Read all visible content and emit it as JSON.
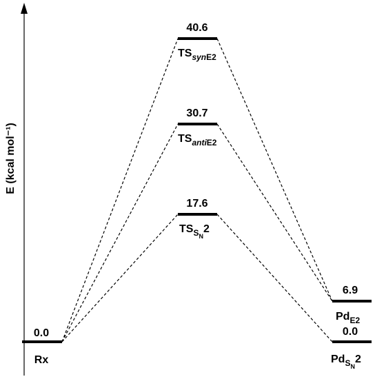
{
  "axis": {
    "label": "E (kcal mol⁻¹)"
  },
  "chart_data": {
    "type": "energy-profile",
    "states": [
      {
        "id": "rx",
        "label": "Rx",
        "value": 0.0,
        "value_text": "0.0"
      },
      {
        "id": "ts_syn",
        "label": "TS",
        "label_sub": "syn",
        "label_sub2": "E2",
        "value": 40.6,
        "value_text": "40.6"
      },
      {
        "id": "ts_anti",
        "label": "TS",
        "label_sub": "anti",
        "label_sub2": "E2",
        "value": 30.7,
        "value_text": "30.7"
      },
      {
        "id": "ts_sn2",
        "label": "TS",
        "label_sub": "S",
        "label_sub3": "N",
        "label_tail": "2",
        "value": 17.6,
        "value_text": "17.6"
      },
      {
        "id": "pd_e2",
        "label": "Pd",
        "label_sub": "E2",
        "value": 6.9,
        "value_text": "6.9"
      },
      {
        "id": "pd_sn2",
        "label": "Pd",
        "label_sub": "S",
        "label_sub3": "N",
        "label_tail": "2",
        "value": 0.0,
        "value_text": "0.0"
      }
    ],
    "paths": [
      [
        "rx",
        "ts_syn",
        "pd_e2"
      ],
      [
        "rx",
        "ts_anti",
        "pd_e2"
      ],
      [
        "rx",
        "ts_sn2",
        "pd_sn2"
      ]
    ]
  }
}
